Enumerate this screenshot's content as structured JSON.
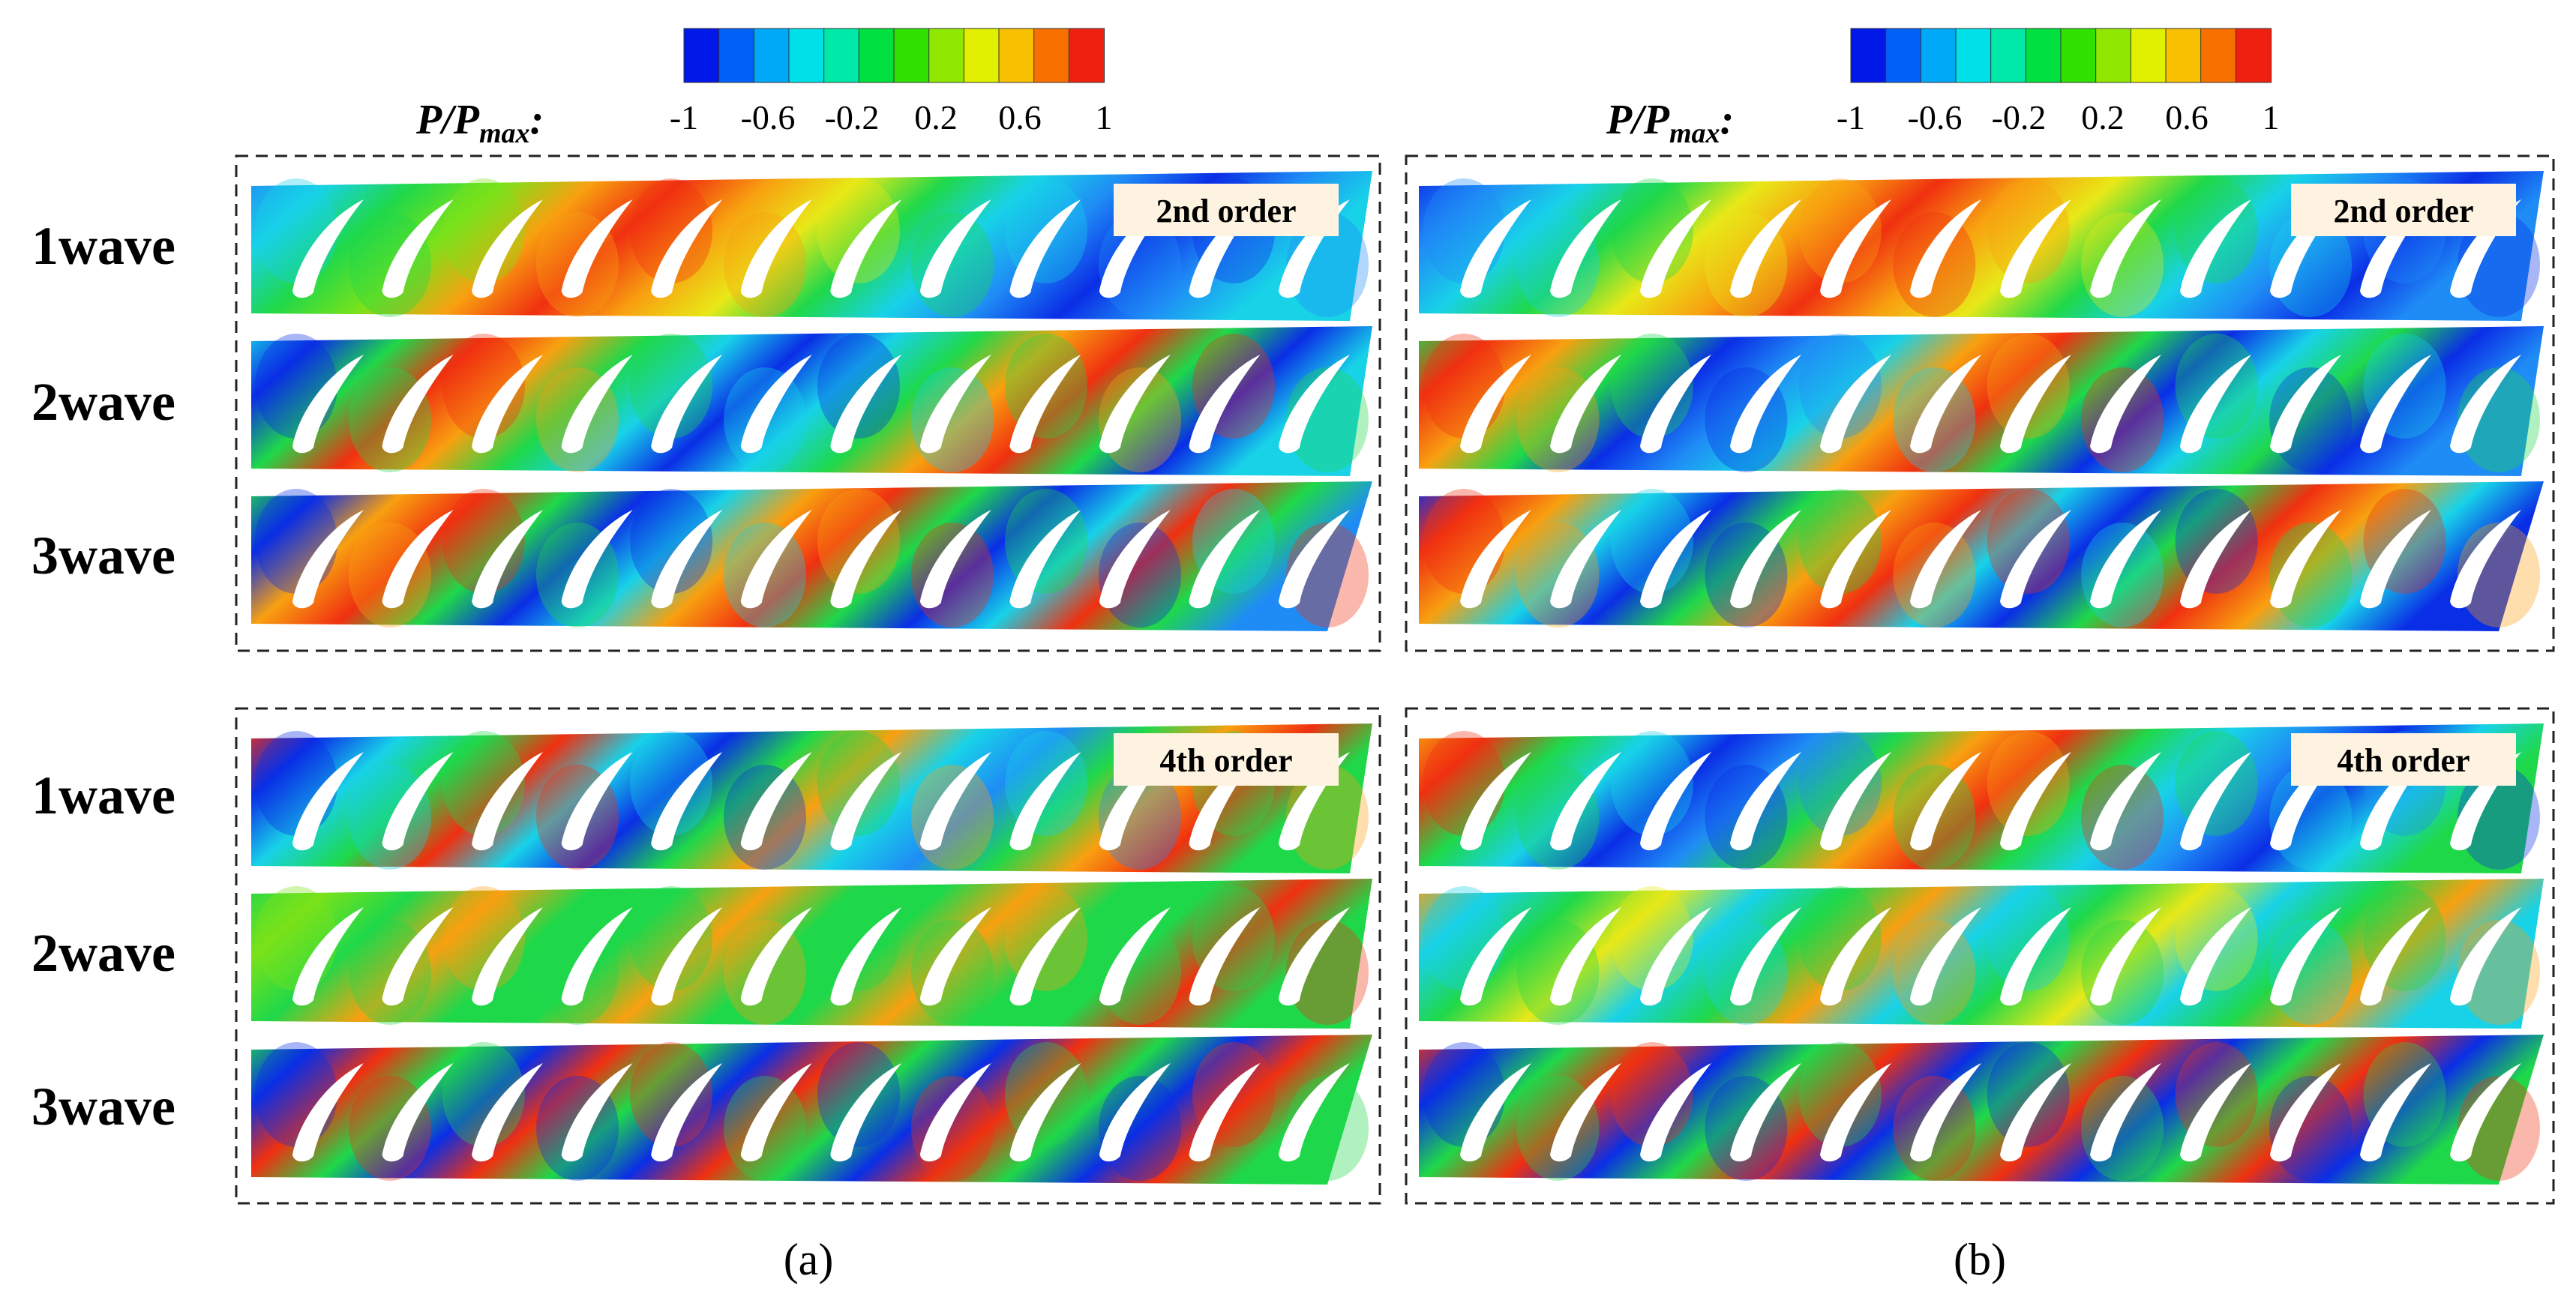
{
  "colorbar": {
    "title_main": "P/P",
    "title_sub": "max",
    "title_colon": ":",
    "ticks": [
      "-1",
      "-0.6",
      "-0.2",
      "0.2",
      "0.6",
      "1"
    ],
    "colors": [
      "#0018e8",
      "#0060f8",
      "#00a8f8",
      "#00e0e8",
      "#00e8a8",
      "#00e040",
      "#30e000",
      "#90e800",
      "#e0f000",
      "#f8c000",
      "#f87000",
      "#f02010"
    ]
  },
  "row_labels": [
    "1wave",
    "2wave",
    "3wave"
  ],
  "panels": [
    {
      "caption": "(a)",
      "groups": [
        {
          "order_label": "2nd order"
        },
        {
          "order_label": "4th order"
        }
      ]
    },
    {
      "caption": "(b)",
      "groups": [
        {
          "order_label": "2nd order"
        },
        {
          "order_label": "4th order"
        }
      ]
    }
  ]
}
